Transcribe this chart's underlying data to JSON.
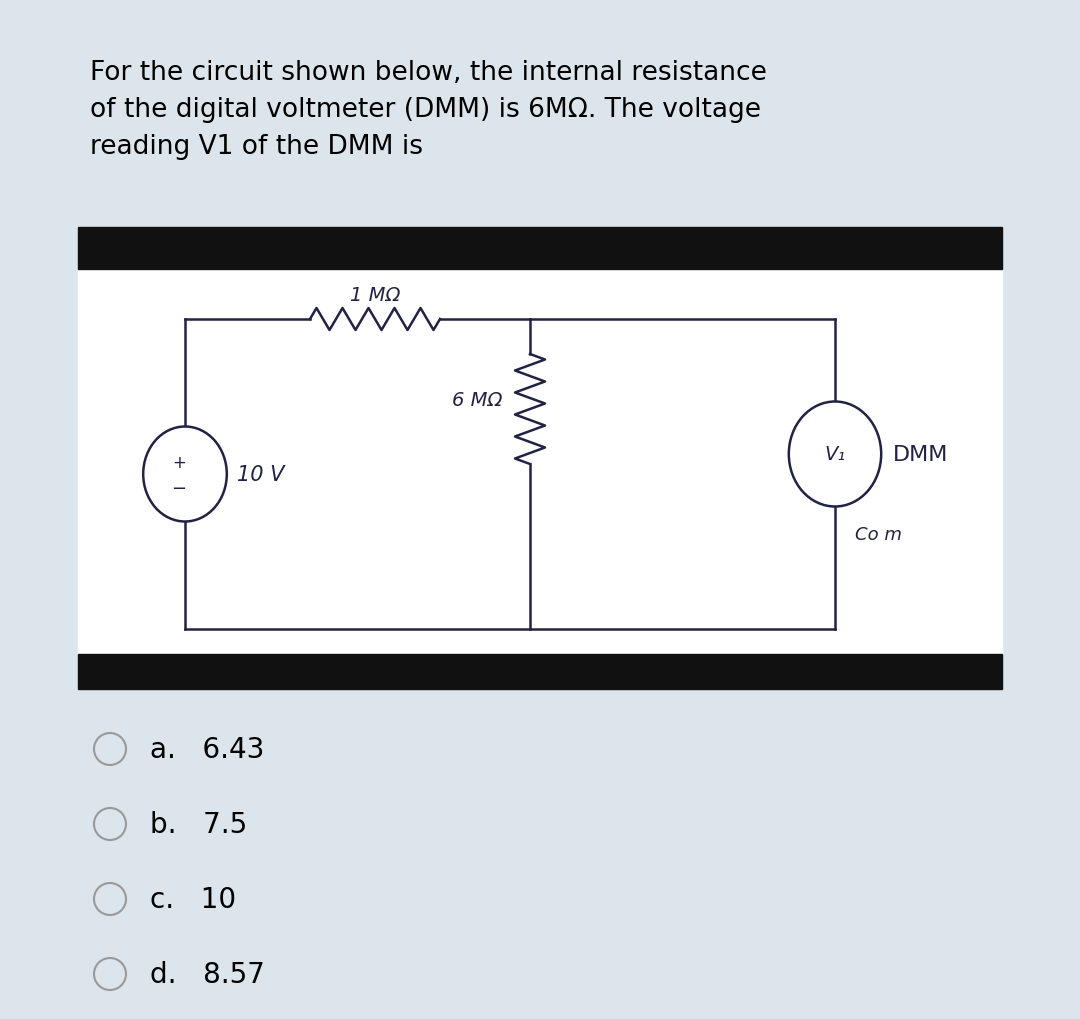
{
  "title_text": "For the circuit shown below, the internal resistance\nof the digital voltmeter (DMM) is 6MΩ. The voltage\nreading V1 of the DMM is",
  "title_fontsize": 19,
  "bg_color": "#dce5ec",
  "circuit_bg": "#ffffff",
  "circuit_panel_bg": "#111111",
  "choices": [
    "a.   6.43",
    "b.   7.5",
    "c.   10",
    "d.   8.57"
  ],
  "choice_fontsize": 20,
  "source_label": "10 V",
  "r1_label": "1 MΩ",
  "r2_label": "6 MΩ",
  "dmm_label": "DMM",
  "v1_label": "V₁",
  "com_label": "Co m"
}
